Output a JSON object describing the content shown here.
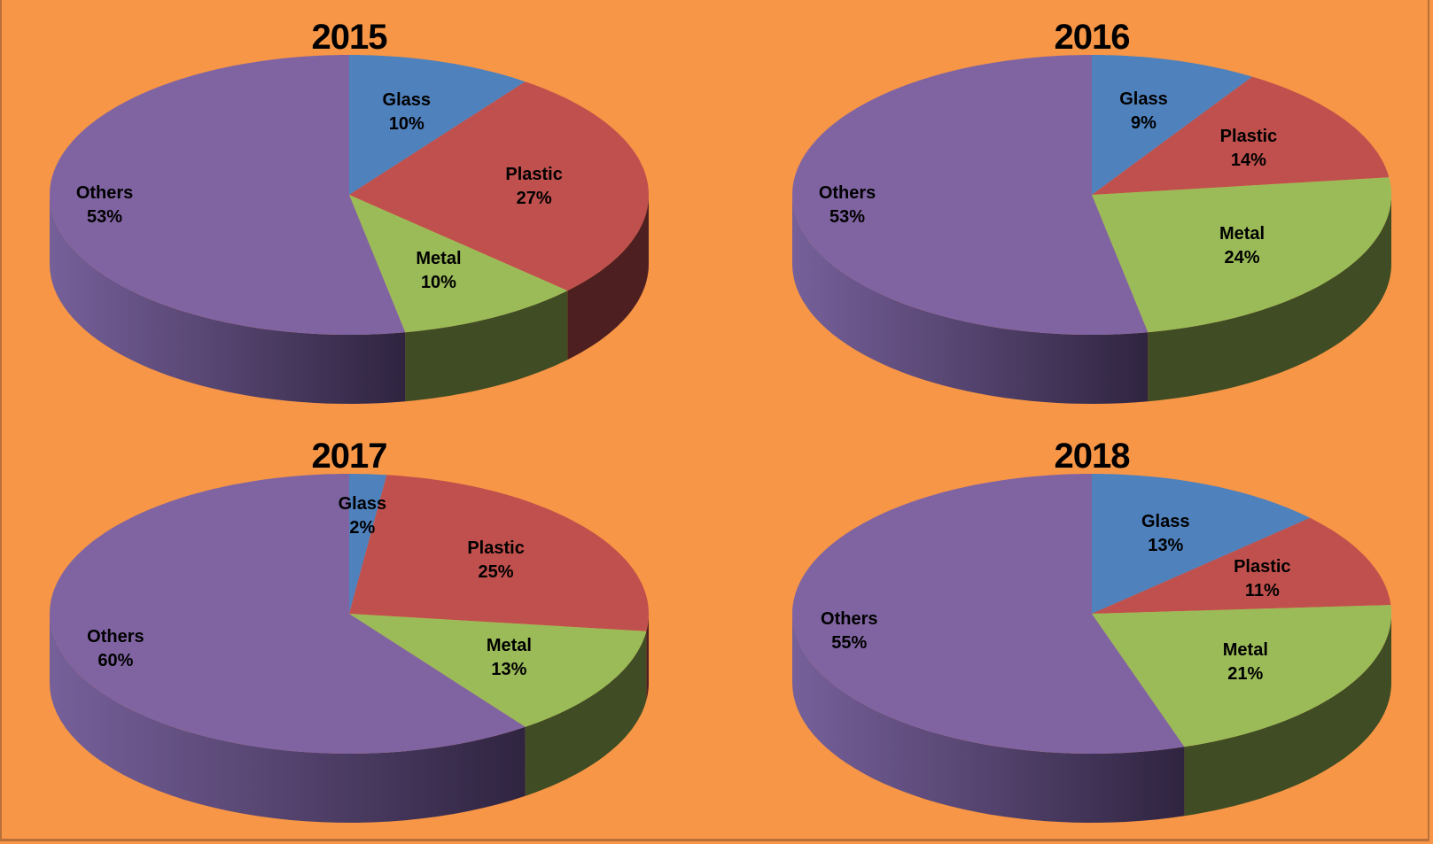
{
  "background_color": "#F79646",
  "colors": {
    "Glass": "#4F81BD",
    "Plastic": "#C0504D",
    "Metal": "#9BBB59",
    "Others": "#8064A2"
  },
  "side_colors": {
    "Glass": "#2A4466",
    "Plastic": "#4E1F20",
    "Metal": "#3F4C24",
    "Others": "#4A3A62"
  },
  "charts": [
    {
      "title": "2015",
      "slices": [
        {
          "label": "Glass",
          "value": 10,
          "text": "10%"
        },
        {
          "label": "Plastic",
          "value": 27,
          "text": "27%"
        },
        {
          "label": "Metal",
          "value": 10,
          "text": "10%"
        },
        {
          "label": "Others",
          "value": 53,
          "text": "53%"
        }
      ]
    },
    {
      "title": "2016",
      "slices": [
        {
          "label": "Glass",
          "value": 9,
          "text": "9%"
        },
        {
          "label": "Plastic",
          "value": 14,
          "text": "14%"
        },
        {
          "label": "Metal",
          "value": 24,
          "text": "24%"
        },
        {
          "label": "Others",
          "value": 53,
          "text": "53%"
        }
      ]
    },
    {
      "title": "2017",
      "slices": [
        {
          "label": "Glass",
          "value": 2,
          "text": "2%"
        },
        {
          "label": "Plastic",
          "value": 25,
          "text": "25%"
        },
        {
          "label": "Metal",
          "value": 13,
          "text": "13%"
        },
        {
          "label": "Others",
          "value": 60,
          "text": "60%"
        }
      ]
    },
    {
      "title": "2018",
      "slices": [
        {
          "label": "Glass",
          "value": 13,
          "text": "13%"
        },
        {
          "label": "Plastic",
          "value": 11,
          "text": "11%"
        },
        {
          "label": "Metal",
          "value": 21,
          "text": "21%"
        },
        {
          "label": "Others",
          "value": 55,
          "text": "55%"
        }
      ]
    }
  ],
  "chart_data": [
    {
      "type": "pie",
      "title": "2015",
      "categories": [
        "Glass",
        "Plastic",
        "Metal",
        "Others"
      ],
      "values": [
        10,
        27,
        10,
        53
      ],
      "unit": "%",
      "style": "3d",
      "legend": "none (data labels on slices)"
    },
    {
      "type": "pie",
      "title": "2016",
      "categories": [
        "Glass",
        "Plastic",
        "Metal",
        "Others"
      ],
      "values": [
        9,
        14,
        24,
        53
      ],
      "unit": "%",
      "style": "3d",
      "legend": "none (data labels on slices)"
    },
    {
      "type": "pie",
      "title": "2017",
      "categories": [
        "Glass",
        "Plastic",
        "Metal",
        "Others"
      ],
      "values": [
        2,
        25,
        13,
        60
      ],
      "unit": "%",
      "style": "3d",
      "legend": "none (data labels on slices)"
    },
    {
      "type": "pie",
      "title": "2018",
      "categories": [
        "Glass",
        "Plastic",
        "Metal",
        "Others"
      ],
      "values": [
        13,
        11,
        21,
        55
      ],
      "unit": "%",
      "style": "3d",
      "legend": "none (data labels on slices)"
    }
  ]
}
